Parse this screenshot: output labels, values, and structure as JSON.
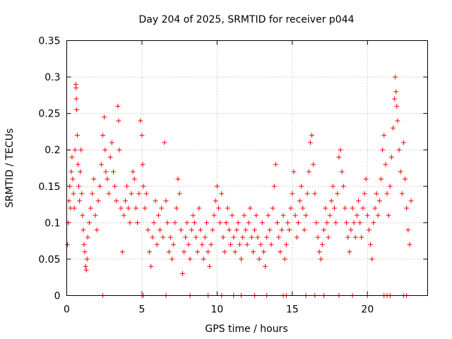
{
  "chart_data": {
    "type": "scatter",
    "title": "Day 204 of 2025, SRMTID for receiver p044",
    "xlabel": "GPS time / hours",
    "ylabel": "SRMTID / TECUs",
    "xlim": [
      0,
      24
    ],
    "ylim": [
      0,
      0.35
    ],
    "x_ticks": [
      0,
      5,
      10,
      15,
      20
    ],
    "x_tick_labels": [
      "0",
      "5",
      "10",
      "15",
      "20"
    ],
    "y_ticks": [
      0,
      0.05,
      0.1,
      0.15,
      0.2,
      0.25,
      0.3,
      0.35
    ],
    "y_tick_labels": [
      "0",
      "0.05",
      "0.1",
      "0.15",
      "0.2",
      "0.25",
      "0.3",
      "0.35"
    ],
    "grid": true,
    "marker": "+",
    "color": "#ff0000",
    "zero_markers_x": [
      2.4,
      5.0,
      5.1,
      6.6,
      8.2,
      9.4,
      10.3,
      11.1,
      11.6,
      12.5,
      13.3,
      14.4,
      14.6,
      15.9,
      16.5,
      17.1,
      18.1,
      19.0,
      20.0,
      21.1,
      21.3,
      21.5,
      22.4,
      22.6
    ],
    "series": [
      {
        "name": "SRMTID",
        "points": [
          [
            0.05,
            0.07
          ],
          [
            0.1,
            0.1
          ],
          [
            0.15,
            0.13
          ],
          [
            0.2,
            0.15
          ],
          [
            0.25,
            0.12
          ],
          [
            0.3,
            0.17
          ],
          [
            0.35,
            0.19
          ],
          [
            0.4,
            0.16
          ],
          [
            0.45,
            0.14
          ],
          [
            0.5,
            0.12
          ],
          [
            0.55,
            0.2
          ],
          [
            0.6,
            0.29
          ],
          [
            0.62,
            0.285
          ],
          [
            0.64,
            0.27
          ],
          [
            0.66,
            0.255
          ],
          [
            0.7,
            0.22
          ],
          [
            0.75,
            0.18
          ],
          [
            0.8,
            0.15
          ],
          [
            0.85,
            0.13
          ],
          [
            0.9,
            0.17
          ],
          [
            0.95,
            0.2
          ],
          [
            1.0,
            0.14
          ],
          [
            1.05,
            0.11
          ],
          [
            1.1,
            0.09
          ],
          [
            1.15,
            0.07
          ],
          [
            1.2,
            0.06
          ],
          [
            1.25,
            0.04
          ],
          [
            1.3,
            0.035
          ],
          [
            1.35,
            0.05
          ],
          [
            1.4,
            0.08
          ],
          [
            1.5,
            0.1
          ],
          [
            1.6,
            0.12
          ],
          [
            1.7,
            0.14
          ],
          [
            1.8,
            0.16
          ],
          [
            1.9,
            0.11
          ],
          [
            2.0,
            0.09
          ],
          [
            2.1,
            0.13
          ],
          [
            2.2,
            0.15
          ],
          [
            2.3,
            0.18
          ],
          [
            2.4,
            0.22
          ],
          [
            2.5,
            0.245
          ],
          [
            2.55,
            0.2
          ],
          [
            2.6,
            0.17
          ],
          [
            2.7,
            0.16
          ],
          [
            2.8,
            0.14
          ],
          [
            2.9,
            0.19
          ],
          [
            3.0,
            0.21
          ],
          [
            3.1,
            0.17
          ],
          [
            3.2,
            0.15
          ],
          [
            3.3,
            0.13
          ],
          [
            3.4,
            0.26
          ],
          [
            3.45,
            0.24
          ],
          [
            3.5,
            0.2
          ],
          [
            3.6,
            0.12
          ],
          [
            3.7,
            0.06
          ],
          [
            3.8,
            0.11
          ],
          [
            3.9,
            0.13
          ],
          [
            4.0,
            0.15
          ],
          [
            4.1,
            0.12
          ],
          [
            4.2,
            0.1
          ],
          [
            4.3,
            0.14
          ],
          [
            4.4,
            0.17
          ],
          [
            4.5,
            0.16
          ],
          [
            4.6,
            0.12
          ],
          [
            4.7,
            0.1
          ],
          [
            4.8,
            0.14
          ],
          [
            4.9,
            0.24
          ],
          [
            5.0,
            0.22
          ],
          [
            5.05,
            0.18
          ],
          [
            5.1,
            0.15
          ],
          [
            5.2,
            0.12
          ],
          [
            5.3,
            0.14
          ],
          [
            5.4,
            0.09
          ],
          [
            5.5,
            0.06
          ],
          [
            5.6,
            0.04
          ],
          [
            5.7,
            0.08
          ],
          [
            5.8,
            0.1
          ],
          [
            5.9,
            0.13
          ],
          [
            6.0,
            0.07
          ],
          [
            6.1,
            0.11
          ],
          [
            6.2,
            0.09
          ],
          [
            6.3,
            0.12
          ],
          [
            6.4,
            0.08
          ],
          [
            6.5,
            0.21
          ],
          [
            6.6,
            0.13
          ],
          [
            6.7,
            0.1
          ],
          [
            6.8,
            0.06
          ],
          [
            6.9,
            0.08
          ],
          [
            7.0,
            0.05
          ],
          [
            7.1,
            0.07
          ],
          [
            7.2,
            0.1
          ],
          [
            7.3,
            0.12
          ],
          [
            7.4,
            0.16
          ],
          [
            7.5,
            0.14
          ],
          [
            7.6,
            0.09
          ],
          [
            7.7,
            0.03
          ],
          [
            7.8,
            0.06
          ],
          [
            7.9,
            0.08
          ],
          [
            8.0,
            0.1
          ],
          [
            8.1,
            0.07
          ],
          [
            8.2,
            0.05
          ],
          [
            8.3,
            0.09
          ],
          [
            8.4,
            0.11
          ],
          [
            8.5,
            0.1
          ],
          [
            8.6,
            0.08
          ],
          [
            8.7,
            0.06
          ],
          [
            8.8,
            0.12
          ],
          [
            8.9,
            0.09
          ],
          [
            9.0,
            0.07
          ],
          [
            9.1,
            0.05
          ],
          [
            9.2,
            0.08
          ],
          [
            9.3,
            0.1
          ],
          [
            9.4,
            0.06
          ],
          [
            9.5,
            0.04
          ],
          [
            9.6,
            0.07
          ],
          [
            9.7,
            0.09
          ],
          [
            9.8,
            0.11
          ],
          [
            9.9,
            0.13
          ],
          [
            10.0,
            0.15
          ],
          [
            10.1,
            0.12
          ],
          [
            10.2,
            0.1
          ],
          [
            10.3,
            0.14
          ],
          [
            10.4,
            0.08
          ],
          [
            10.5,
            0.06
          ],
          [
            10.6,
            0.1
          ],
          [
            10.7,
            0.12
          ],
          [
            10.8,
            0.09
          ],
          [
            10.9,
            0.07
          ],
          [
            11.0,
            0.11
          ],
          [
            11.1,
            0.08
          ],
          [
            11.2,
            0.06
          ],
          [
            11.3,
            0.09
          ],
          [
            11.4,
            0.1
          ],
          [
            11.5,
            0.07
          ],
          [
            11.6,
            0.05
          ],
          [
            11.7,
            0.08
          ],
          [
            11.8,
            0.11
          ],
          [
            11.9,
            0.09
          ],
          [
            12.0,
            0.07
          ],
          [
            12.1,
            0.1
          ],
          [
            12.2,
            0.12
          ],
          [
            12.3,
            0.08
          ],
          [
            12.4,
            0.06
          ],
          [
            12.5,
            0.09
          ],
          [
            12.6,
            0.11
          ],
          [
            12.7,
            0.08
          ],
          [
            12.8,
            0.05
          ],
          [
            12.9,
            0.07
          ],
          [
            13.0,
            0.1
          ],
          [
            13.1,
            0.06
          ],
          [
            13.2,
            0.04
          ],
          [
            13.3,
            0.08
          ],
          [
            13.4,
            0.11
          ],
          [
            13.5,
            0.09
          ],
          [
            13.6,
            0.07
          ],
          [
            13.7,
            0.12
          ],
          [
            13.8,
            0.15
          ],
          [
            13.9,
            0.18
          ],
          [
            14.0,
            0.1
          ],
          [
            14.1,
            0.08
          ],
          [
            14.2,
            0.06
          ],
          [
            14.3,
            0.09
          ],
          [
            14.4,
            0.11
          ],
          [
            14.5,
            0.05
          ],
          [
            14.6,
            0.07
          ],
          [
            14.7,
            0.1
          ],
          [
            14.8,
            0.09
          ],
          [
            14.9,
            0.12
          ],
          [
            15.0,
            0.14
          ],
          [
            15.1,
            0.17
          ],
          [
            15.2,
            0.11
          ],
          [
            15.3,
            0.08
          ],
          [
            15.4,
            0.1
          ],
          [
            15.5,
            0.13
          ],
          [
            15.6,
            0.15
          ],
          [
            15.7,
            0.12
          ],
          [
            15.8,
            0.09
          ],
          [
            15.9,
            0.11
          ],
          [
            16.0,
            0.14
          ],
          [
            16.1,
            0.17
          ],
          [
            16.2,
            0.21
          ],
          [
            16.3,
            0.22
          ],
          [
            16.4,
            0.18
          ],
          [
            16.5,
            0.14
          ],
          [
            16.6,
            0.1
          ],
          [
            16.7,
            0.08
          ],
          [
            16.8,
            0.06
          ],
          [
            16.9,
            0.05
          ],
          [
            17.0,
            0.07
          ],
          [
            17.1,
            0.09
          ],
          [
            17.2,
            0.12
          ],
          [
            17.3,
            0.1
          ],
          [
            17.4,
            0.08
          ],
          [
            17.5,
            0.11
          ],
          [
            17.6,
            0.13
          ],
          [
            17.7,
            0.15
          ],
          [
            17.8,
            0.12
          ],
          [
            17.9,
            0.1
          ],
          [
            18.0,
            0.14
          ],
          [
            18.1,
            0.19
          ],
          [
            18.2,
            0.2
          ],
          [
            18.3,
            0.17
          ],
          [
            18.4,
            0.15
          ],
          [
            18.5,
            0.12
          ],
          [
            18.6,
            0.1
          ],
          [
            18.7,
            0.08
          ],
          [
            18.8,
            0.06
          ],
          [
            18.9,
            0.09
          ],
          [
            19.0,
            0.12
          ],
          [
            19.1,
            0.1
          ],
          [
            19.2,
            0.08
          ],
          [
            19.3,
            0.11
          ],
          [
            19.4,
            0.13
          ],
          [
            19.5,
            0.1
          ],
          [
            19.6,
            0.08
          ],
          [
            19.7,
            0.12
          ],
          [
            19.8,
            0.14
          ],
          [
            19.9,
            0.16
          ],
          [
            20.0,
            0.11
          ],
          [
            20.1,
            0.09
          ],
          [
            20.2,
            0.07
          ],
          [
            20.3,
            0.05
          ],
          [
            20.4,
            0.1
          ],
          [
            20.5,
            0.12
          ],
          [
            20.6,
            0.14
          ],
          [
            20.7,
            0.11
          ],
          [
            20.8,
            0.13
          ],
          [
            20.9,
            0.16
          ],
          [
            21.0,
            0.2
          ],
          [
            21.1,
            0.22
          ],
          [
            21.2,
            0.18
          ],
          [
            21.3,
            0.14
          ],
          [
            21.4,
            0.11
          ],
          [
            21.5,
            0.15
          ],
          [
            21.6,
            0.19
          ],
          [
            21.7,
            0.23
          ],
          [
            21.8,
            0.27
          ],
          [
            21.85,
            0.3
          ],
          [
            21.9,
            0.28
          ],
          [
            21.95,
            0.26
          ],
          [
            22.0,
            0.24
          ],
          [
            22.1,
            0.2
          ],
          [
            22.2,
            0.17
          ],
          [
            22.3,
            0.14
          ],
          [
            22.4,
            0.21
          ],
          [
            22.5,
            0.16
          ],
          [
            22.6,
            0.12
          ],
          [
            22.7,
            0.09
          ],
          [
            22.8,
            0.07
          ],
          [
            22.9,
            0.13
          ]
        ]
      }
    ]
  }
}
